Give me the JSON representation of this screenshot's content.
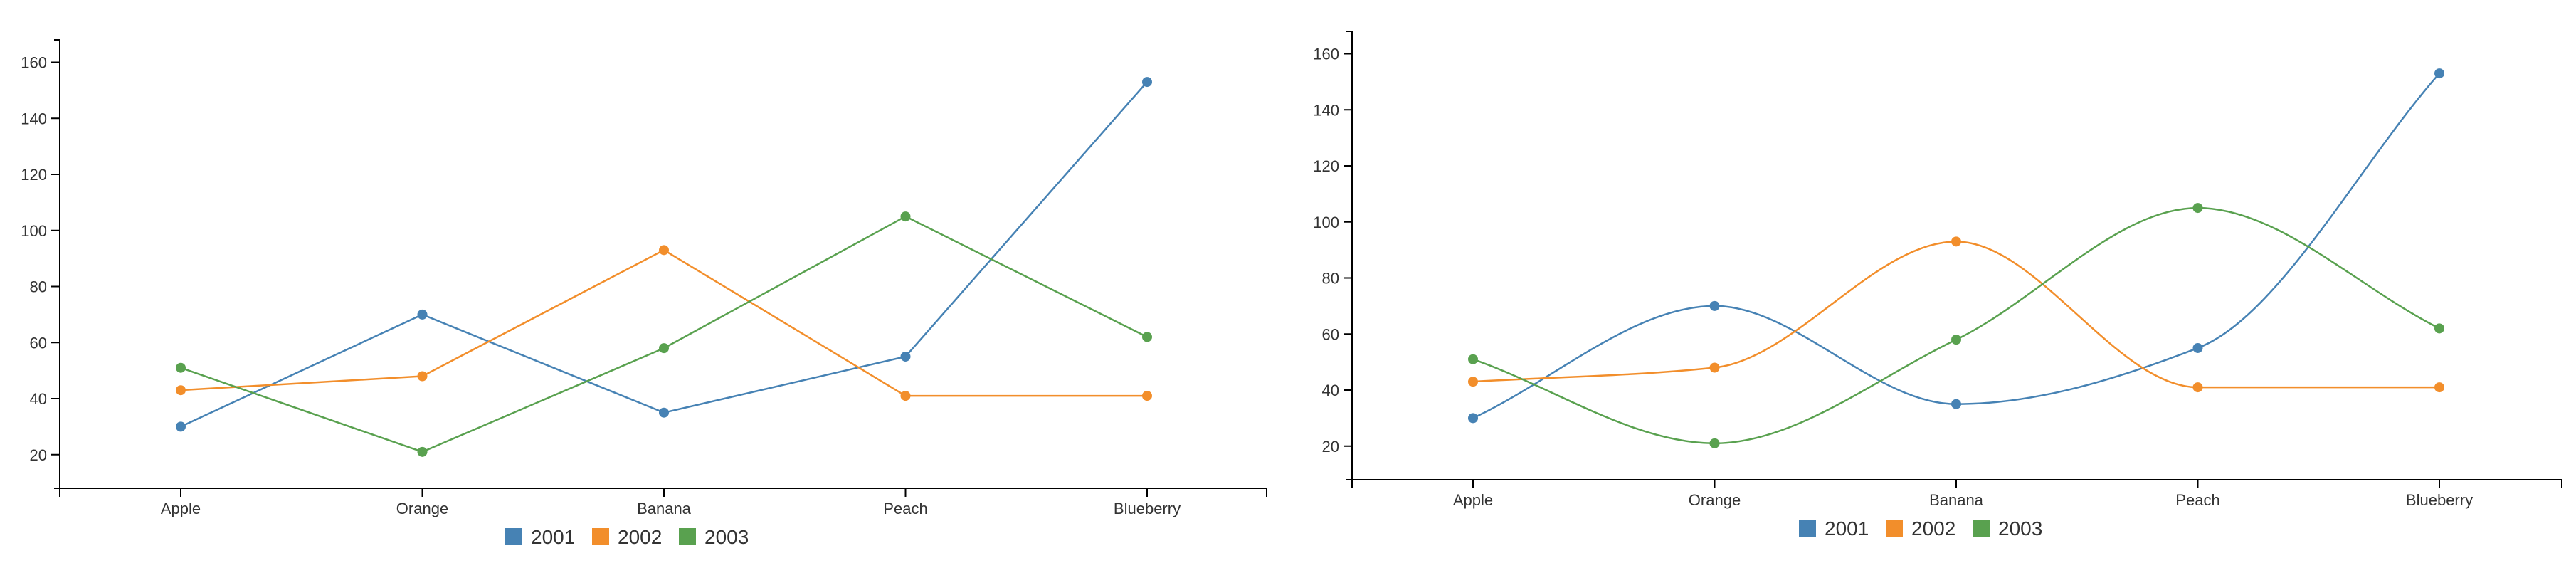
{
  "chart_data": [
    {
      "type": "line",
      "curve": "linear",
      "categories": [
        "Apple",
        "Orange",
        "Banana",
        "Peach",
        "Blueberry"
      ],
      "series": [
        {
          "name": "2001",
          "color": "#4682b4",
          "values": [
            30,
            70,
            35,
            55,
            153
          ]
        },
        {
          "name": "2002",
          "color": "#f28e2b",
          "values": [
            43,
            48,
            93,
            41,
            41
          ]
        },
        {
          "name": "2003",
          "color": "#59a14f",
          "values": [
            51,
            21,
            58,
            105,
            62
          ]
        }
      ],
      "yticks": [
        20,
        40,
        60,
        80,
        100,
        120,
        140,
        160
      ],
      "ylim": [
        8,
        168
      ],
      "grid": false,
      "legend": "bottom"
    },
    {
      "type": "line",
      "curve": "smooth",
      "categories": [
        "Apple",
        "Orange",
        "Banana",
        "Peach",
        "Blueberry"
      ],
      "series": [
        {
          "name": "2001",
          "color": "#4682b4",
          "values": [
            30,
            70,
            35,
            55,
            153
          ]
        },
        {
          "name": "2002",
          "color": "#f28e2b",
          "values": [
            43,
            48,
            93,
            41,
            41
          ]
        },
        {
          "name": "2003",
          "color": "#59a14f",
          "values": [
            51,
            21,
            58,
            105,
            62
          ]
        }
      ],
      "yticks": [
        20,
        40,
        60,
        80,
        100,
        120,
        140,
        160
      ],
      "ylim": [
        8,
        168
      ],
      "grid": false,
      "legend": "bottom"
    }
  ]
}
